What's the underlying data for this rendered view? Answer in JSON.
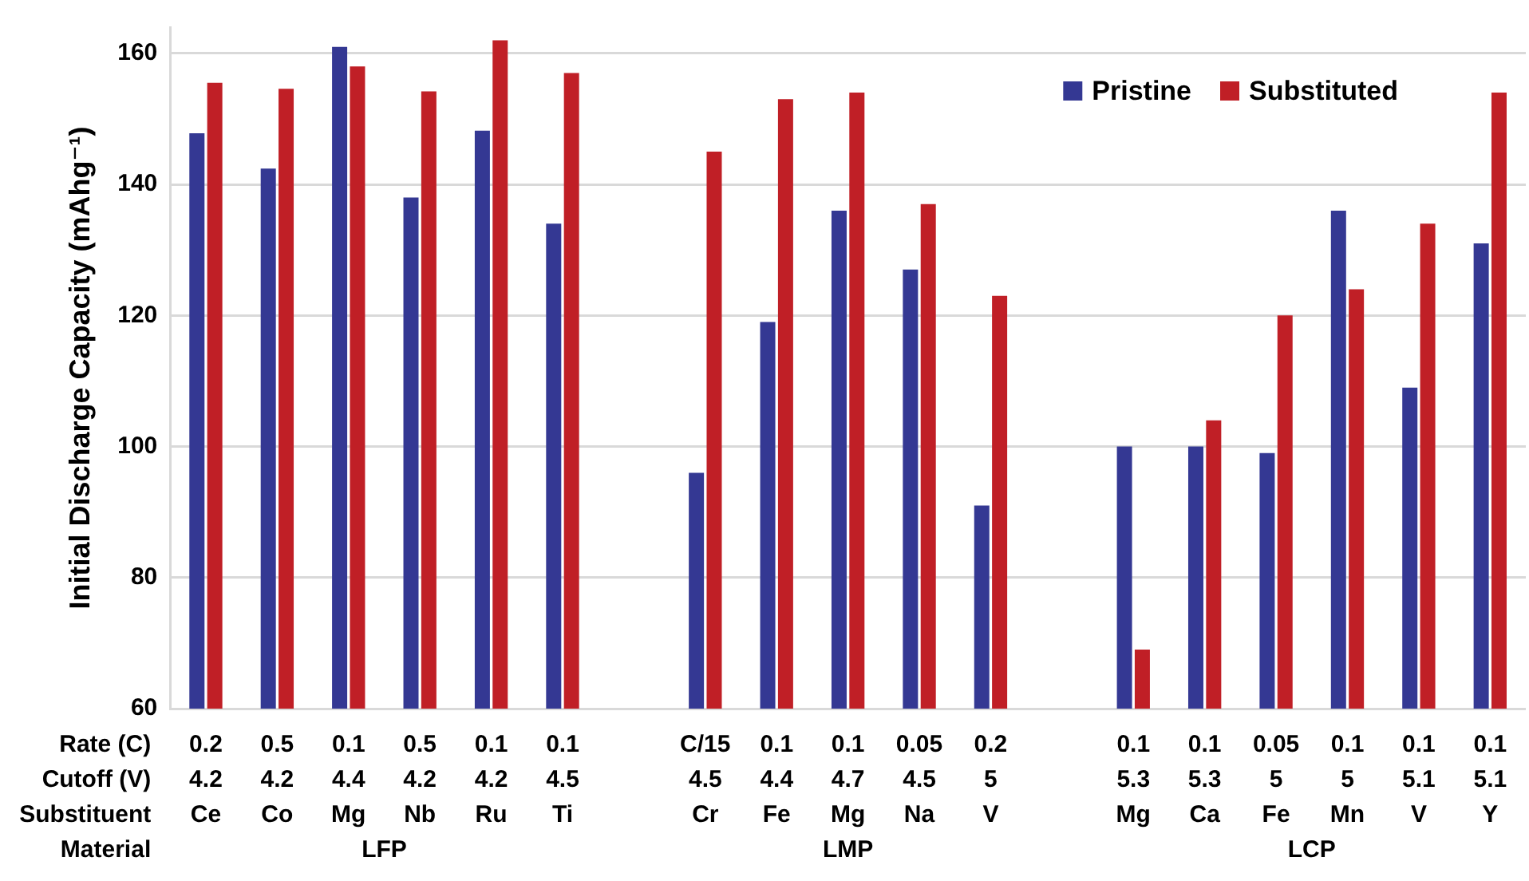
{
  "chart_data": {
    "type": "bar",
    "ylabel": "Initial Discharge Capacity (mAhg⁻¹)",
    "categories": [
      "0.2\n4.2\nCe",
      "0.5\n4.2\nCo",
      "0.1\n4.4\nMg",
      "0.5\n4.2\nNb",
      "0.1\n4.2\nRu",
      "0.1\n4.5\nTi",
      null,
      "C/15\n4.5\nCr",
      "0.1\n4.4\nFe",
      "0.1\n4.7\nMg",
      "0.05\n4.5\nNa",
      "0.2\n5\nV",
      null,
      "0.1\n5.3\nMg",
      "0.1\n5.3\nCa",
      "0.05\n5\nFe",
      "0.1\n5\nMn",
      "0.1\n5.1\nV",
      "0.1\n5.1\nY"
    ],
    "series": [
      {
        "name": "Pristine",
        "color": "#343893",
        "values": [
          147.8,
          142.4,
          161,
          138,
          148.2,
          134,
          null,
          96,
          119,
          136,
          127,
          91,
          null,
          100,
          100,
          99,
          136,
          109,
          131
        ]
      },
      {
        "name": "Substituted",
        "color": "#c01f26",
        "values": [
          155.5,
          154.6,
          158,
          154.2,
          162,
          157,
          null,
          145,
          153,
          154,
          137,
          123,
          null,
          69,
          104,
          120,
          124,
          134,
          154
        ]
      }
    ],
    "annotations": [
      "Rate (C)",
      "Cutoff (V)",
      "Substituent",
      "Material",
      "LFP",
      "LMP",
      "LCP"
    ],
    "ylim": [
      60,
      164
    ],
    "yticks": [
      60,
      80,
      100,
      120,
      140,
      160
    ],
    "grid": "y",
    "legend": "top right"
  }
}
